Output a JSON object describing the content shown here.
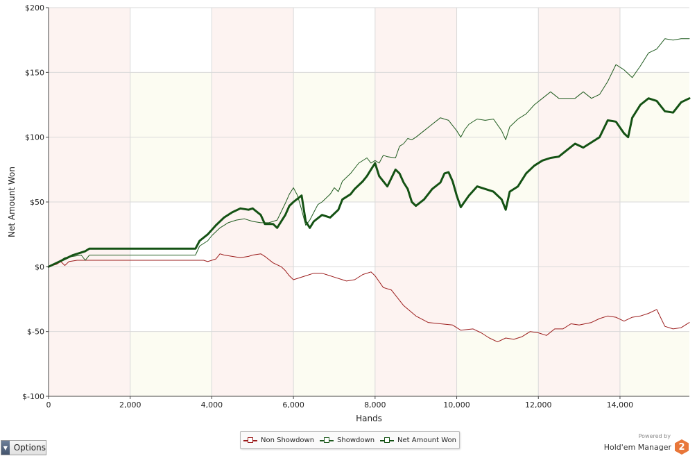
{
  "chart_data": {
    "type": "line",
    "xlabel": "Hands",
    "ylabel": "Net Amount Won",
    "xlim": [
      0,
      15700
    ],
    "ylim": [
      -100,
      200
    ],
    "x_ticks": [
      0,
      2000,
      4000,
      6000,
      8000,
      10000,
      12000,
      14000
    ],
    "x_tick_labels": [
      "0",
      "2,000",
      "4,000",
      "6,000",
      "8,000",
      "10,000",
      "12,000",
      "14,000"
    ],
    "y_ticks": [
      -100,
      -50,
      0,
      50,
      100,
      150,
      200
    ],
    "y_tick_labels": [
      "$-100",
      "$-50",
      "$0",
      "$50",
      "$100",
      "$150",
      "$200"
    ],
    "grid": true,
    "legend_position": "bottom-center",
    "series": [
      {
        "name": "Non Showdown",
        "color": "#9b1c1c",
        "line_width": 1,
        "points": [
          [
            0,
            0
          ],
          [
            200,
            2
          ],
          [
            300,
            4
          ],
          [
            400,
            1
          ],
          [
            500,
            4
          ],
          [
            700,
            5
          ],
          [
            1000,
            5
          ],
          [
            2000,
            5
          ],
          [
            3000,
            5
          ],
          [
            3600,
            5
          ],
          [
            3800,
            5
          ],
          [
            3900,
            4
          ],
          [
            4000,
            5
          ],
          [
            4100,
            6
          ],
          [
            4200,
            10
          ],
          [
            4300,
            9
          ],
          [
            4500,
            8
          ],
          [
            4700,
            7
          ],
          [
            4900,
            8
          ],
          [
            5000,
            9
          ],
          [
            5200,
            10
          ],
          [
            5300,
            8
          ],
          [
            5500,
            3
          ],
          [
            5700,
            0
          ],
          [
            5800,
            -3
          ],
          [
            5900,
            -7
          ],
          [
            6000,
            -10
          ],
          [
            6100,
            -9
          ],
          [
            6300,
            -7
          ],
          [
            6500,
            -5
          ],
          [
            6700,
            -5
          ],
          [
            6900,
            -7
          ],
          [
            7000,
            -8
          ],
          [
            7200,
            -10
          ],
          [
            7300,
            -11
          ],
          [
            7500,
            -10
          ],
          [
            7700,
            -6
          ],
          [
            7900,
            -4
          ],
          [
            8000,
            -7
          ],
          [
            8200,
            -16
          ],
          [
            8400,
            -18
          ],
          [
            8700,
            -30
          ],
          [
            9000,
            -38
          ],
          [
            9300,
            -43
          ],
          [
            9600,
            -44
          ],
          [
            9900,
            -45
          ],
          [
            10100,
            -49
          ],
          [
            10400,
            -48
          ],
          [
            10600,
            -51
          ],
          [
            10800,
            -55
          ],
          [
            11000,
            -58
          ],
          [
            11200,
            -55
          ],
          [
            11400,
            -56
          ],
          [
            11600,
            -54
          ],
          [
            11800,
            -50
          ],
          [
            12000,
            -51
          ],
          [
            12200,
            -53
          ],
          [
            12400,
            -48
          ],
          [
            12600,
            -48
          ],
          [
            12800,
            -44
          ],
          [
            13000,
            -45
          ],
          [
            13300,
            -43
          ],
          [
            13500,
            -40
          ],
          [
            13700,
            -38
          ],
          [
            13900,
            -39
          ],
          [
            14100,
            -42
          ],
          [
            14300,
            -39
          ],
          [
            14500,
            -38
          ],
          [
            14700,
            -36
          ],
          [
            14900,
            -33
          ],
          [
            15100,
            -46
          ],
          [
            15300,
            -48
          ],
          [
            15500,
            -47
          ],
          [
            15700,
            -43
          ]
        ]
      },
      {
        "name": "Showdown",
        "color": "#1e5a1e",
        "line_width": 1,
        "points": [
          [
            0,
            0
          ],
          [
            200,
            3
          ],
          [
            400,
            7
          ],
          [
            600,
            8
          ],
          [
            800,
            9
          ],
          [
            900,
            5
          ],
          [
            1000,
            9
          ],
          [
            1500,
            9
          ],
          [
            2000,
            9
          ],
          [
            3000,
            9
          ],
          [
            3600,
            9
          ],
          [
            3700,
            16
          ],
          [
            3900,
            20
          ],
          [
            4000,
            24
          ],
          [
            4200,
            30
          ],
          [
            4400,
            34
          ],
          [
            4600,
            36
          ],
          [
            4800,
            37
          ],
          [
            5000,
            35
          ],
          [
            5200,
            34
          ],
          [
            5400,
            34
          ],
          [
            5600,
            36
          ],
          [
            5800,
            49
          ],
          [
            5900,
            56
          ],
          [
            6000,
            61
          ],
          [
            6100,
            55
          ],
          [
            6200,
            44
          ],
          [
            6300,
            32
          ],
          [
            6400,
            36
          ],
          [
            6500,
            42
          ],
          [
            6600,
            48
          ],
          [
            6700,
            50
          ],
          [
            6900,
            56
          ],
          [
            7000,
            61
          ],
          [
            7100,
            58
          ],
          [
            7200,
            66
          ],
          [
            7400,
            72
          ],
          [
            7600,
            80
          ],
          [
            7800,
            84
          ],
          [
            7900,
            80
          ],
          [
            8000,
            82
          ],
          [
            8100,
            80
          ],
          [
            8200,
            86
          ],
          [
            8300,
            85
          ],
          [
            8500,
            84
          ],
          [
            8600,
            93
          ],
          [
            8700,
            95
          ],
          [
            8800,
            99
          ],
          [
            8900,
            98
          ],
          [
            9000,
            100
          ],
          [
            9200,
            105
          ],
          [
            9400,
            110
          ],
          [
            9600,
            115
          ],
          [
            9800,
            113
          ],
          [
            10000,
            105
          ],
          [
            10100,
            100
          ],
          [
            10200,
            106
          ],
          [
            10300,
            110
          ],
          [
            10500,
            114
          ],
          [
            10700,
            113
          ],
          [
            10900,
            114
          ],
          [
            11100,
            105
          ],
          [
            11200,
            98
          ],
          [
            11300,
            108
          ],
          [
            11500,
            114
          ],
          [
            11700,
            118
          ],
          [
            11900,
            125
          ],
          [
            12100,
            130
          ],
          [
            12300,
            135
          ],
          [
            12500,
            130
          ],
          [
            12700,
            130
          ],
          [
            12900,
            130
          ],
          [
            13100,
            135
          ],
          [
            13300,
            130
          ],
          [
            13500,
            133
          ],
          [
            13700,
            143
          ],
          [
            13900,
            156
          ],
          [
            14100,
            152
          ],
          [
            14300,
            146
          ],
          [
            14500,
            155
          ],
          [
            14700,
            165
          ],
          [
            14900,
            168
          ],
          [
            15100,
            176
          ],
          [
            15300,
            175
          ],
          [
            15500,
            176
          ],
          [
            15700,
            176
          ]
        ]
      },
      {
        "name": "Net Amount Won",
        "color": "#145214",
        "line_width": 3,
        "points": [
          [
            0,
            0
          ],
          [
            200,
            3
          ],
          [
            400,
            6
          ],
          [
            600,
            9
          ],
          [
            800,
            11
          ],
          [
            900,
            12
          ],
          [
            1000,
            14
          ],
          [
            2000,
            14
          ],
          [
            3000,
            14
          ],
          [
            3600,
            14
          ],
          [
            3700,
            20
          ],
          [
            3900,
            25
          ],
          [
            4100,
            32
          ],
          [
            4300,
            38
          ],
          [
            4500,
            42
          ],
          [
            4700,
            45
          ],
          [
            4900,
            44
          ],
          [
            5000,
            45
          ],
          [
            5200,
            40
          ],
          [
            5300,
            33
          ],
          [
            5500,
            33
          ],
          [
            5600,
            30
          ],
          [
            5800,
            40
          ],
          [
            5900,
            47
          ],
          [
            6000,
            50
          ],
          [
            6200,
            55
          ],
          [
            6300,
            35
          ],
          [
            6400,
            30
          ],
          [
            6500,
            35
          ],
          [
            6700,
            40
          ],
          [
            6900,
            38
          ],
          [
            7100,
            44
          ],
          [
            7200,
            52
          ],
          [
            7400,
            56
          ],
          [
            7500,
            60
          ],
          [
            7700,
            66
          ],
          [
            7800,
            70
          ],
          [
            7900,
            75
          ],
          [
            8000,
            80
          ],
          [
            8100,
            70
          ],
          [
            8300,
            62
          ],
          [
            8500,
            75
          ],
          [
            8600,
            72
          ],
          [
            8700,
            65
          ],
          [
            8800,
            60
          ],
          [
            8900,
            50
          ],
          [
            9000,
            47
          ],
          [
            9200,
            52
          ],
          [
            9400,
            60
          ],
          [
            9600,
            65
          ],
          [
            9700,
            72
          ],
          [
            9800,
            73
          ],
          [
            9900,
            66
          ],
          [
            10000,
            55
          ],
          [
            10100,
            46
          ],
          [
            10300,
            55
          ],
          [
            10500,
            62
          ],
          [
            10700,
            60
          ],
          [
            10900,
            58
          ],
          [
            11100,
            52
          ],
          [
            11200,
            44
          ],
          [
            11300,
            58
          ],
          [
            11500,
            62
          ],
          [
            11700,
            72
          ],
          [
            11900,
            78
          ],
          [
            12100,
            82
          ],
          [
            12300,
            84
          ],
          [
            12500,
            85
          ],
          [
            12700,
            90
          ],
          [
            12900,
            95
          ],
          [
            13100,
            92
          ],
          [
            13300,
            96
          ],
          [
            13500,
            100
          ],
          [
            13700,
            113
          ],
          [
            13900,
            112
          ],
          [
            14100,
            103
          ],
          [
            14200,
            100
          ],
          [
            14300,
            115
          ],
          [
            14500,
            125
          ],
          [
            14700,
            130
          ],
          [
            14900,
            128
          ],
          [
            15100,
            120
          ],
          [
            15300,
            119
          ],
          [
            15500,
            127
          ],
          [
            15700,
            130
          ]
        ]
      }
    ]
  },
  "legend": {
    "items": [
      {
        "label": "Non Showdown",
        "color": "#9b1c1c"
      },
      {
        "label": "Showdown",
        "color": "#1e5a1e"
      },
      {
        "label": "Net Amount Won",
        "color": "#145214"
      }
    ]
  },
  "options": {
    "label": "Options"
  },
  "branding": {
    "powered_by": "Powered by",
    "name": "Hold'em Manager",
    "logo_text": "2"
  },
  "band_colors": {
    "pink": "#fdf3f1",
    "cream": "#fcfcf2",
    "white": "#ffffff"
  }
}
